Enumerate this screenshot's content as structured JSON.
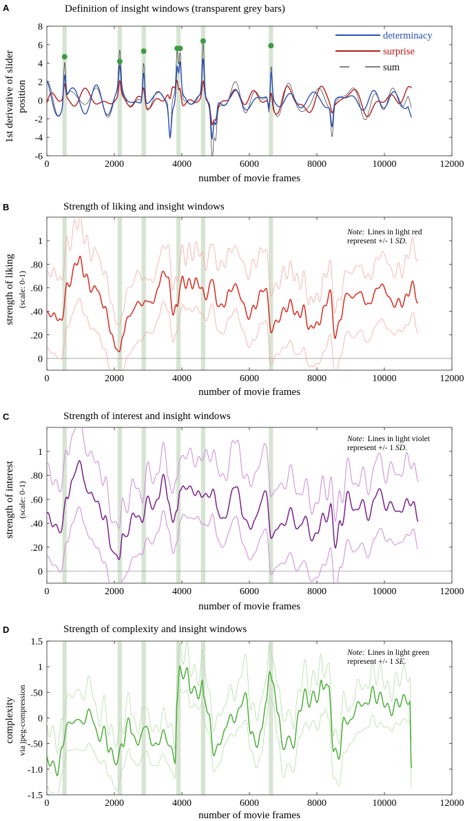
{
  "figure": {
    "insight_window_centers": [
      525,
      2160,
      2870,
      3900,
      4630,
      6640
    ],
    "insight_window_width": 130,
    "window_color": "#d7e4d3"
  },
  "chart_data": [
    {
      "id": "A",
      "type": "line",
      "letter": "A",
      "title": "Definition of insight windows (transparent grey bars)",
      "xlabel": "number of movie frames",
      "ylabel": [
        "1st derivative of slider",
        "position"
      ],
      "xlim": [
        0,
        12000
      ],
      "ylim": [
        -6,
        8
      ],
      "xticks": [
        0,
        2000,
        4000,
        6000,
        8000,
        10000,
        12000
      ],
      "xtick_labels": [
        "0",
        "2000",
        "4000",
        "6000",
        "8000",
        "10000",
        "12000"
      ],
      "yticks": [
        -6,
        -4,
        -2,
        0,
        2,
        4,
        6,
        8
      ],
      "ytick_labels": [
        "-6",
        "-4",
        "-2",
        "0",
        "2",
        "4",
        "6",
        "8"
      ],
      "series": [
        {
          "name": "determinacy",
          "color": "#2a4fb4"
        },
        {
          "name": "surprise",
          "color": "#b31b1b"
        },
        {
          "name": "sum",
          "color": "#333333"
        }
      ],
      "peaks": [
        {
          "x": 525,
          "y": 4.7
        },
        {
          "x": 2160,
          "y": 4.2
        },
        {
          "x": 2870,
          "y": 5.3
        },
        {
          "x": 3860,
          "y": 5.6
        },
        {
          "x": 3950,
          "y": 5.6
        },
        {
          "x": 4630,
          "y": 6.4
        },
        {
          "x": 6640,
          "y": 5.9
        }
      ],
      "peak_color": "#3d9a42"
    },
    {
      "id": "B",
      "type": "line",
      "letter": "B",
      "title": "Strength of liking and insight windows",
      "xlabel": "number of movie frames",
      "ylabel": [
        "strength of liking",
        "(scale: 0-1)"
      ],
      "xlim": [
        0,
        12000
      ],
      "ylim": [
        -0.1,
        1.2
      ],
      "xticks": [
        0,
        2000,
        4000,
        6000,
        8000,
        10000,
        12000
      ],
      "xtick_labels": [
        "0",
        "2000",
        "4000",
        "6000",
        "8000",
        "10000",
        "12000"
      ],
      "yticks": [
        0,
        0.2,
        0.4,
        0.6,
        0.8,
        1.0
      ],
      "ytick_labels": [
        "0",
        ".20",
        ".40",
        ".60",
        ".80",
        "1"
      ],
      "note_lines": [
        "Lines in light red",
        "represent +/- 1 "
      ],
      "note_prefix": "Note:",
      "note_stat": "SD.",
      "mean_color": "#d62a1e",
      "band_color": "#f2a7a1",
      "x_end": 11000,
      "keypoints": [
        [
          0,
          0.4
        ],
        [
          200,
          0.35
        ],
        [
          420,
          0.32
        ],
        [
          600,
          0.58
        ],
        [
          750,
          0.72
        ],
        [
          950,
          0.86
        ],
        [
          1100,
          0.74
        ],
        [
          1300,
          0.62
        ],
        [
          1500,
          0.56
        ],
        [
          1700,
          0.42
        ],
        [
          1900,
          0.22
        ],
        [
          2050,
          0.12
        ],
        [
          2150,
          0.08
        ],
        [
          2250,
          0.24
        ],
        [
          2400,
          0.33
        ],
        [
          2600,
          0.4
        ],
        [
          2800,
          0.44
        ],
        [
          2950,
          0.52
        ],
        [
          3100,
          0.5
        ],
        [
          3300,
          0.6
        ],
        [
          3450,
          0.74
        ],
        [
          3600,
          0.62
        ],
        [
          3750,
          0.38
        ],
        [
          3850,
          0.46
        ],
        [
          3950,
          0.62
        ],
        [
          4050,
          0.68
        ],
        [
          4250,
          0.62
        ],
        [
          4450,
          0.64
        ],
        [
          4600,
          0.58
        ],
        [
          4750,
          0.55
        ],
        [
          4900,
          0.68
        ],
        [
          5050,
          0.46
        ],
        [
          5200,
          0.4
        ],
        [
          5400,
          0.56
        ],
        [
          5600,
          0.66
        ],
        [
          5800,
          0.48
        ],
        [
          6000,
          0.34
        ],
        [
          6150,
          0.4
        ],
        [
          6350,
          0.56
        ],
        [
          6500,
          0.6
        ],
        [
          6650,
          0.24
        ],
        [
          6800,
          0.34
        ],
        [
          7000,
          0.38
        ],
        [
          7200,
          0.46
        ],
        [
          7400,
          0.34
        ],
        [
          7600,
          0.42
        ],
        [
          7800,
          0.28
        ],
        [
          8000,
          0.3
        ],
        [
          8200,
          0.38
        ],
        [
          8400,
          0.54
        ],
        [
          8550,
          0.16
        ],
        [
          8700,
          0.38
        ],
        [
          8900,
          0.58
        ],
        [
          9100,
          0.5
        ],
        [
          9300,
          0.56
        ],
        [
          9500,
          0.44
        ],
        [
          9700,
          0.56
        ],
        [
          9900,
          0.62
        ],
        [
          10100,
          0.52
        ],
        [
          10300,
          0.48
        ],
        [
          10500,
          0.5
        ],
        [
          10700,
          0.52
        ],
        [
          10850,
          0.6
        ],
        [
          11000,
          0.42
        ]
      ],
      "sd_upper": 0.28,
      "sd_lower": 0.28,
      "seed": 7
    },
    {
      "id": "C",
      "type": "line",
      "letter": "C",
      "title": "Strength of interest and insight windows",
      "xlabel": "number of movie frames",
      "ylabel": [
        "strength of interest",
        "(scale: 0-1)"
      ],
      "xlim": [
        0,
        12000
      ],
      "ylim": [
        -0.1,
        1.2
      ],
      "xticks": [
        0,
        2000,
        4000,
        6000,
        8000,
        10000,
        12000
      ],
      "xtick_labels": [
        "0",
        "2000",
        "4000",
        "6000",
        "8000",
        "10000",
        "12000"
      ],
      "yticks": [
        0,
        0.2,
        0.4,
        0.6,
        0.8,
        1.0
      ],
      "ytick_labels": [
        "0",
        ".20",
        ".40",
        ".60",
        ".80",
        "1"
      ],
      "note_lines": [
        "Lines in light violet",
        "represent +/- 1 "
      ],
      "note_prefix": "Note:",
      "note_stat": "SD.",
      "mean_color": "#7a1f8a",
      "band_color": "#cf93d6",
      "x_end": 11000,
      "keypoints": [
        [
          0,
          0.44
        ],
        [
          200,
          0.4
        ],
        [
          420,
          0.36
        ],
        [
          600,
          0.6
        ],
        [
          750,
          0.76
        ],
        [
          950,
          0.9
        ],
        [
          1100,
          0.78
        ],
        [
          1300,
          0.64
        ],
        [
          1500,
          0.56
        ],
        [
          1700,
          0.44
        ],
        [
          1900,
          0.24
        ],
        [
          2050,
          0.14
        ],
        [
          2150,
          0.1
        ],
        [
          2250,
          0.26
        ],
        [
          2400,
          0.36
        ],
        [
          2600,
          0.44
        ],
        [
          2800,
          0.48
        ],
        [
          2950,
          0.56
        ],
        [
          3100,
          0.52
        ],
        [
          3300,
          0.62
        ],
        [
          3450,
          0.76
        ],
        [
          3600,
          0.64
        ],
        [
          3750,
          0.4
        ],
        [
          3850,
          0.48
        ],
        [
          3950,
          0.66
        ],
        [
          4050,
          0.72
        ],
        [
          4250,
          0.66
        ],
        [
          4450,
          0.7
        ],
        [
          4600,
          0.62
        ],
        [
          4750,
          0.58
        ],
        [
          4900,
          0.72
        ],
        [
          5050,
          0.5
        ],
        [
          5200,
          0.42
        ],
        [
          5400,
          0.58
        ],
        [
          5600,
          0.7
        ],
        [
          5800,
          0.5
        ],
        [
          6000,
          0.36
        ],
        [
          6150,
          0.42
        ],
        [
          6350,
          0.58
        ],
        [
          6500,
          0.64
        ],
        [
          6650,
          0.28
        ],
        [
          6800,
          0.36
        ],
        [
          7000,
          0.4
        ],
        [
          7200,
          0.48
        ],
        [
          7400,
          0.36
        ],
        [
          7600,
          0.46
        ],
        [
          7800,
          0.3
        ],
        [
          8000,
          0.32
        ],
        [
          8200,
          0.4
        ],
        [
          8400,
          0.58
        ],
        [
          8550,
          0.2
        ],
        [
          8700,
          0.4
        ],
        [
          8900,
          0.6
        ],
        [
          9100,
          0.52
        ],
        [
          9300,
          0.58
        ],
        [
          9500,
          0.46
        ],
        [
          9700,
          0.58
        ],
        [
          9900,
          0.66
        ],
        [
          10100,
          0.56
        ],
        [
          10300,
          0.5
        ],
        [
          10500,
          0.52
        ],
        [
          10700,
          0.54
        ],
        [
          10850,
          0.62
        ],
        [
          11000,
          0.44
        ]
      ],
      "sd_upper": 0.3,
      "sd_lower": 0.3,
      "seed": 11
    },
    {
      "id": "D",
      "type": "line",
      "letter": "D",
      "title": "Strength of complexity and insight windows",
      "xlabel": "number of movie frames",
      "ylabel": [
        "complexity",
        "via jpeg-compression"
      ],
      "xlim": [
        0,
        12000
      ],
      "ylim": [
        -1.5,
        1.5
      ],
      "xticks": [
        0,
        2000,
        4000,
        6000,
        8000,
        10000,
        12000
      ],
      "xtick_labels": [
        "0",
        "2000",
        "4000",
        "6000",
        "8000",
        "10000",
        "12000"
      ],
      "yticks": [
        -1.5,
        -1.0,
        -0.5,
        0,
        0.5,
        1.0,
        1.5
      ],
      "ytick_labels": [
        "-1.5",
        "-1.0",
        "-.50",
        "0",
        ".50",
        "1",
        "1.5"
      ],
      "note_lines": [
        "Lines in light green",
        "represent +/- 1 "
      ],
      "note_prefix": "Note:",
      "note_stat": "SE.",
      "mean_color": "#4cae3a",
      "band_color": "#b4dca6",
      "x_end": 10800,
      "keypoints": [
        [
          0,
          -0.85
        ],
        [
          150,
          -1.0
        ],
        [
          300,
          -0.98
        ],
        [
          450,
          -0.55
        ],
        [
          600,
          -0.1
        ],
        [
          800,
          -0.05
        ],
        [
          950,
          -0.1
        ],
        [
          1100,
          -0.05
        ],
        [
          1300,
          0.0
        ],
        [
          1500,
          -0.2
        ],
        [
          1700,
          -0.35
        ],
        [
          1850,
          -0.55
        ],
        [
          2000,
          -0.8
        ],
        [
          2100,
          -0.9
        ],
        [
          2250,
          -0.4
        ],
        [
          2450,
          -0.15
        ],
        [
          2500,
          -0.3
        ],
        [
          2650,
          -0.4
        ],
        [
          2800,
          -0.35
        ],
        [
          2950,
          -0.2
        ],
        [
          3100,
          -0.45
        ],
        [
          3250,
          -0.5
        ],
        [
          3400,
          -0.3
        ],
        [
          3550,
          -0.45
        ],
        [
          3700,
          -0.7
        ],
        [
          3800,
          -0.75
        ],
        [
          3850,
          0.3
        ],
        [
          3950,
          0.88
        ],
        [
          4050,
          0.9
        ],
        [
          4150,
          0.85
        ],
        [
          4250,
          0.6
        ],
        [
          4400,
          0.62
        ],
        [
          4600,
          0.58
        ],
        [
          4650,
          0.2
        ],
        [
          4800,
          0.05
        ],
        [
          4950,
          -0.7
        ],
        [
          5100,
          -0.6
        ],
        [
          5300,
          -0.1
        ],
        [
          5500,
          0.05
        ],
        [
          5700,
          0.2
        ],
        [
          5900,
          0.25
        ],
        [
          6050,
          -0.2
        ],
        [
          6200,
          -0.55
        ],
        [
          6350,
          -0.3
        ],
        [
          6500,
          0.4
        ],
        [
          6600,
          0.9
        ],
        [
          6700,
          0.8
        ],
        [
          6850,
          0.05
        ],
        [
          7000,
          -0.7
        ],
        [
          7150,
          -0.4
        ],
        [
          7300,
          -0.5
        ],
        [
          7500,
          0.2
        ],
        [
          7700,
          0.4
        ],
        [
          7900,
          0.5
        ],
        [
          8050,
          0.3
        ],
        [
          8150,
          0.6
        ],
        [
          8250,
          0.8
        ],
        [
          8350,
          0.5
        ],
        [
          8500,
          -0.6
        ],
        [
          8650,
          -0.75
        ],
        [
          8800,
          -0.2
        ],
        [
          9000,
          0.1
        ],
        [
          9200,
          0.2
        ],
        [
          9400,
          0.3
        ],
        [
          9550,
          0.35
        ],
        [
          9650,
          0.5
        ],
        [
          9800,
          0.3
        ],
        [
          10000,
          0.3
        ],
        [
          10200,
          0.25
        ],
        [
          10400,
          0.3
        ],
        [
          10600,
          0.33
        ],
        [
          10750,
          0.35
        ],
        [
          10800,
          -1.0
        ]
      ],
      "sd_upper": 0.45,
      "sd_lower": 0.45,
      "seed": 23
    }
  ]
}
